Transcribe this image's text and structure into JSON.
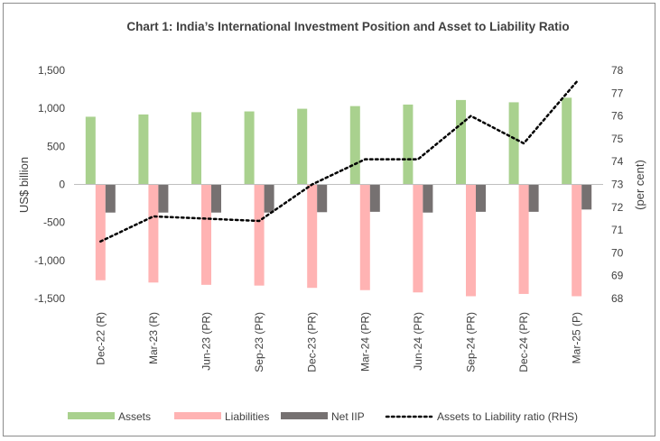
{
  "chart_data": {
    "type": "bar",
    "title": "Chart 1: India’s International Investment Position and Asset to Liability Ratio",
    "ylabel": "US$ billion",
    "y2label": "(per cent)",
    "ylim": [
      -1500,
      1500
    ],
    "y_ticks": [
      "1,500",
      "1,000",
      "500",
      "0",
      "-500",
      "-1,000",
      "-1,500"
    ],
    "y_tick_values": [
      1500,
      1000,
      500,
      0,
      -500,
      -1000,
      -1500
    ],
    "y2lim": [
      68,
      78
    ],
    "y2_ticks": [
      "78",
      "77",
      "76",
      "75",
      "74",
      "73",
      "72",
      "71",
      "70",
      "69",
      "68"
    ],
    "y2_tick_values": [
      78,
      77,
      76,
      75,
      74,
      73,
      72,
      71,
      70,
      69,
      68
    ],
    "categories": [
      "Dec-22 (R)",
      "Mar-23 (R)",
      "Jun-23 (PR)",
      "Sep-23 (PR)",
      "Dec-23 (PR)",
      "Mar-24 (PR)",
      "Jun-24 (PR)",
      "Sep-24 (PR)",
      "Dec-24 (PR)",
      "Mar-25 (P)"
    ],
    "series": [
      {
        "name": "Assets",
        "type": "bar",
        "axis": "left",
        "color": "#a9d18e",
        "values": [
          890,
          920,
          950,
          960,
          995,
          1030,
          1050,
          1110,
          1080,
          1140
        ]
      },
      {
        "name": "Liabilities",
        "type": "bar",
        "axis": "left",
        "color": "#ffb3b3",
        "values": [
          -1260,
          -1290,
          -1320,
          -1330,
          -1360,
          -1390,
          -1420,
          -1470,
          -1440,
          -1470
        ]
      },
      {
        "name": "Net IIP",
        "type": "bar",
        "axis": "left",
        "color": "#767171",
        "values": [
          -370,
          -370,
          -370,
          -370,
          -365,
          -360,
          -370,
          -360,
          -360,
          -330
        ]
      },
      {
        "name": "Assets to Liability ratio (RHS)",
        "type": "line",
        "axis": "right",
        "color": "#000000",
        "values": [
          70.5,
          71.6,
          71.5,
          71.4,
          73.0,
          74.1,
          74.1,
          76.0,
          74.8,
          77.5
        ]
      }
    ],
    "legend": "bottom",
    "grid": false
  }
}
